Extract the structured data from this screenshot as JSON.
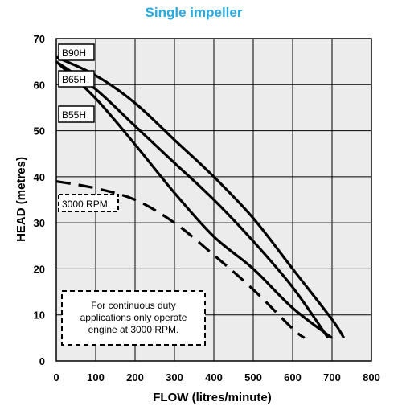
{
  "chart_data": {
    "type": "line",
    "title": "Single impeller",
    "xlabel": "FLOW (litres/minute)",
    "ylabel": "HEAD (metres)",
    "xlim": [
      0,
      800
    ],
    "ylim": [
      0,
      70
    ],
    "x_ticks": [
      "0",
      "100",
      "200",
      "300",
      "400",
      "500",
      "600",
      "700",
      "800"
    ],
    "y_ticks": [
      "0",
      "10",
      "20",
      "30",
      "40",
      "50",
      "60",
      "70"
    ],
    "grid": true,
    "series": [
      {
        "name": "B90H",
        "style": "solid",
        "points": [
          [
            0,
            66
          ],
          [
            100,
            62
          ],
          [
            200,
            56
          ],
          [
            300,
            48
          ],
          [
            400,
            40
          ],
          [
            500,
            31
          ],
          [
            600,
            20
          ],
          [
            700,
            9
          ],
          [
            730,
            5
          ]
        ]
      },
      {
        "name": "B65H",
        "style": "solid",
        "points": [
          [
            0,
            65
          ],
          [
            100,
            59
          ],
          [
            200,
            51
          ],
          [
            300,
            43
          ],
          [
            400,
            35
          ],
          [
            500,
            26
          ],
          [
            600,
            16
          ],
          [
            690,
            5
          ]
        ]
      },
      {
        "name": "B55H",
        "style": "solid",
        "points": [
          [
            0,
            65
          ],
          [
            100,
            57
          ],
          [
            200,
            47
          ],
          [
            300,
            36.5
          ],
          [
            400,
            27
          ],
          [
            500,
            20
          ],
          [
            600,
            11.5
          ],
          [
            700,
            5
          ]
        ]
      },
      {
        "name": "3000 RPM",
        "style": "dashed",
        "points": [
          [
            0,
            39
          ],
          [
            100,
            37.5
          ],
          [
            200,
            35
          ],
          [
            300,
            30
          ],
          [
            400,
            23
          ],
          [
            500,
            15.5
          ],
          [
            600,
            7
          ],
          [
            630,
            5
          ]
        ]
      }
    ],
    "annotation": "For continuous duty applications only operate engine at 3000 RPM.",
    "colors": {
      "line": "#000000",
      "plot_background": "#ececec",
      "title": "#29abe2"
    }
  }
}
